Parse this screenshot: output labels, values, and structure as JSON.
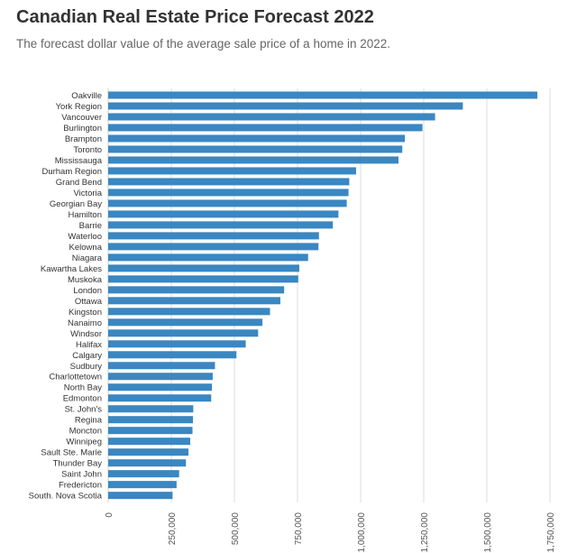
{
  "chart_data": {
    "type": "bar",
    "orientation": "horizontal",
    "title": "Canadian Real Estate Price Forecast 2022",
    "subtitle": "The forecast dollar value of the average sale price of a home in 2022.",
    "xlabel": "",
    "ylabel": "",
    "xlim": [
      0,
      1750000
    ],
    "xticks": [
      0,
      250000,
      500000,
      750000,
      1000000,
      1250000,
      1500000,
      1750000
    ],
    "xtick_labels": [
      "0",
      "250,000",
      "500,000",
      "750,000",
      "1,000,000",
      "1,250,000",
      "1,500,000",
      "1,750,000"
    ],
    "grid": true,
    "bar_color": "#3a87c2",
    "categories": [
      "Oakville",
      "York Region",
      "Vancouver",
      "Burlington",
      "Brampton",
      "Toronto",
      "Mississauga",
      "Durham Region",
      "Grand Bend",
      "Victoria",
      "Georgian Bay",
      "Hamilton",
      "Barrie",
      "Waterloo",
      "Kelowna",
      "Niagara",
      "Kawartha Lakes",
      "Muskoka",
      "London",
      "Ottawa",
      "Kingston",
      "Nanaimo",
      "Windsor",
      "Halifax",
      "Calgary",
      "Sudbury",
      "Charlottetown",
      "North Bay",
      "Edmonton",
      "St. John's",
      "Regina",
      "Moncton",
      "Winnipeg",
      "Sault Ste. Marie",
      "Thunder Bay",
      "Saint John",
      "Fredericton",
      "South. Nova Scotia"
    ],
    "values": [
      1700000,
      1405000,
      1295000,
      1245000,
      1175000,
      1165000,
      1150000,
      982000,
      955000,
      952000,
      945000,
      912000,
      890000,
      835000,
      833000,
      792000,
      757000,
      753000,
      697000,
      682000,
      641000,
      611000,
      594000,
      545000,
      508000,
      423000,
      414000,
      411000,
      408000,
      337000,
      336000,
      334000,
      325000,
      318000,
      308000,
      281000,
      271000,
      255000
    ]
  }
}
